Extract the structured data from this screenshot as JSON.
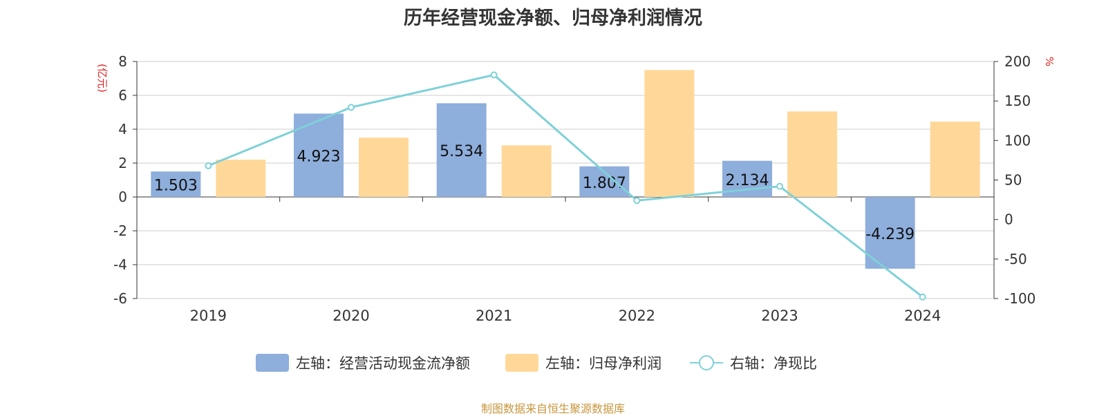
{
  "chart_data": {
    "type": "bar",
    "title": "历年经营现金净额、归母净利润情况",
    "categories": [
      "2019",
      "2020",
      "2021",
      "2022",
      "2023",
      "2024"
    ],
    "y_left": {
      "label": "(亿元)",
      "ticks": [
        "8",
        "6",
        "4",
        "2",
        "0",
        "-2",
        "-4",
        "-6"
      ],
      "ylim": [
        -6,
        8
      ]
    },
    "y_right": {
      "label": "%",
      "ticks": [
        "200",
        "150",
        "100",
        "50",
        "0",
        "-50",
        "-100"
      ],
      "ylim": [
        -100,
        200
      ]
    },
    "series": [
      {
        "name": "左轴：经营活动现金流净额",
        "kind": "bar",
        "axis": "left",
        "color": "#8eaedc",
        "values": [
          1.503,
          4.923,
          5.534,
          1.807,
          2.134,
          -4.239
        ],
        "labels": [
          "1.503",
          "4.923",
          "5.534",
          "1.807",
          "2.134",
          "-4.239"
        ]
      },
      {
        "name": "左轴：归母净利润",
        "kind": "bar",
        "axis": "left",
        "color": "#ffd899",
        "values": [
          2.2,
          3.5,
          3.05,
          7.5,
          5.05,
          4.45
        ]
      },
      {
        "name": "右轴：净现比",
        "kind": "line",
        "axis": "right",
        "color": "#7fd1d8",
        "values": [
          68,
          142,
          183,
          24,
          42,
          -98
        ]
      }
    ],
    "grid": true,
    "legend_position": "bottom"
  },
  "footer": "制图数据来自恒生聚源数据库"
}
